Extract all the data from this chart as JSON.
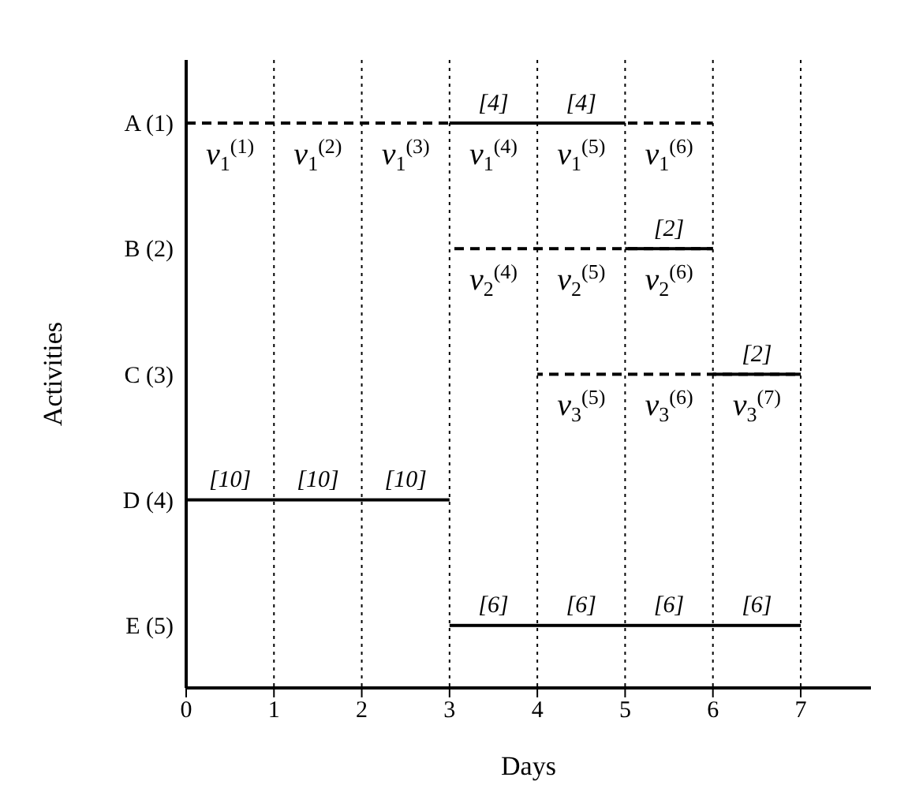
{
  "chart_data": {
    "type": "bar",
    "orientation": "horizontal",
    "xlabel": "Days",
    "ylabel": "Activities",
    "categories": [
      "A (1)",
      "B (2)",
      "C (3)",
      "D (4)",
      "E (5)"
    ],
    "series": [
      {
        "color": "#000000",
        "line_style": "dashed",
        "base": [
          0,
          3,
          4,
          null,
          null
        ],
        "values": [
          6,
          3,
          3,
          null,
          null
        ]
      },
      {
        "color": "#000000",
        "line_style": "solid",
        "base": [
          3,
          5,
          6,
          0,
          3
        ],
        "values": [
          2,
          1,
          1,
          3,
          4
        ]
      }
    ],
    "xlim": [
      0,
      7.8
    ],
    "xticks": [
      0,
      1,
      2,
      3,
      4,
      5,
      6,
      7
    ],
    "grid": "x",
    "annotations": [
      {
        "text": "[4]",
        "x": 3.5,
        "y": "A (1)"
      },
      {
        "text": "[4]",
        "x": 4.5,
        "y": "A (1)"
      },
      {
        "text": "[2]",
        "x": 5.5,
        "y": "B (2)"
      },
      {
        "text": "[2]",
        "x": 6.5,
        "y": "C (3)"
      },
      {
        "text": "[10]",
        "x": 0.5,
        "y": "D (4)"
      },
      {
        "text": "[10]",
        "x": 1.5,
        "y": "D (4)"
      },
      {
        "text": "[10]",
        "x": 2.5,
        "y": "D (4)"
      },
      {
        "text": "[6]",
        "x": 3.5,
        "y": "E (5)"
      },
      {
        "text": "[6]",
        "x": 4.5,
        "y": "E (5)"
      },
      {
        "text": "[6]",
        "x": 5.5,
        "y": "E (5)"
      },
      {
        "text": "[6]",
        "x": 6.5,
        "y": "E (5)"
      },
      {
        "text": "v$_{1}$$^{(1)}$",
        "x": 0.5,
        "y": "A (1)"
      },
      {
        "text": "v$_{1}$$^{(2)}$",
        "x": 1.5,
        "y": "A (1)"
      },
      {
        "text": "v$_{1}$$^{(3)}$",
        "x": 2.5,
        "y": "A (1)"
      },
      {
        "text": "v$_{1}$$^{(4)}$",
        "x": 3.5,
        "y": "A (1)"
      },
      {
        "text": "v$_{1}$$^{(5)}$",
        "x": 4.5,
        "y": "A (1)"
      },
      {
        "text": "v$_{1}$$^{(6)}$",
        "x": 5.5,
        "y": "A (1)"
      },
      {
        "text": "v$_{2}$$^{(4)}$",
        "x": 3.5,
        "y": "B (2)"
      },
      {
        "text": "v$_{2}$$^{(5)}$",
        "x": 4.5,
        "y": "B (2)"
      },
      {
        "text": "v$_{2}$$^{(6)}$",
        "x": 5.5,
        "y": "B (2)"
      },
      {
        "text": "v$_{3}$$^{(5)}$",
        "x": 4.5,
        "y": "C (3)"
      },
      {
        "text": "v$_{3}$$^{(6)}$",
        "x": 5.5,
        "y": "C (3)"
      },
      {
        "text": "v$_{3}$$^{(7)}$",
        "x": 6.5,
        "y": "C (3)"
      }
    ]
  }
}
